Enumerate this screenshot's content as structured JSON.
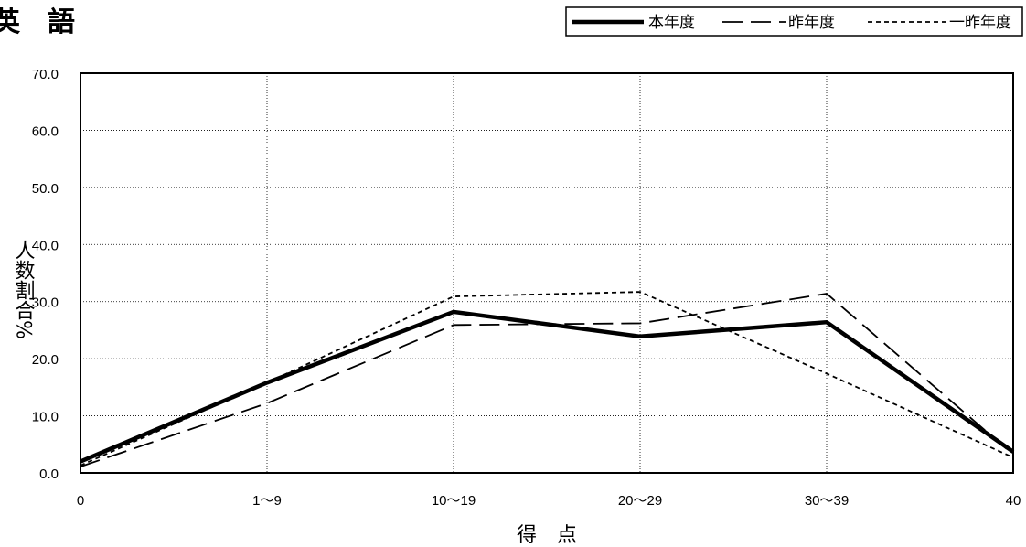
{
  "chart_data": {
    "type": "line",
    "title": "英　語",
    "xlabel": "得　点",
    "ylabel": "人数割合%",
    "categories": [
      "0",
      "1〜9",
      "10〜19",
      "20〜29",
      "30〜39",
      "40"
    ],
    "ylim": [
      0,
      70
    ],
    "y_ticks": [
      "0.0",
      "10.0",
      "20.0",
      "30.0",
      "40.0",
      "50.0",
      "60.0",
      "70.0"
    ],
    "grid": true,
    "legend_position": "top-right",
    "series": [
      {
        "name": "本年度",
        "style": "solid",
        "color": "#000000",
        "values": [
          2.0,
          15.8,
          28.2,
          23.9,
          26.4,
          3.7
        ]
      },
      {
        "name": "昨年度",
        "style": "dashed",
        "color": "#000000",
        "values": [
          1.1,
          12.2,
          25.9,
          26.2,
          31.4,
          3.2
        ]
      },
      {
        "name": "一昨年度",
        "style": "dotted",
        "color": "#000000",
        "values": [
          1.3,
          15.8,
          30.9,
          31.7,
          17.4,
          2.7
        ]
      }
    ]
  }
}
